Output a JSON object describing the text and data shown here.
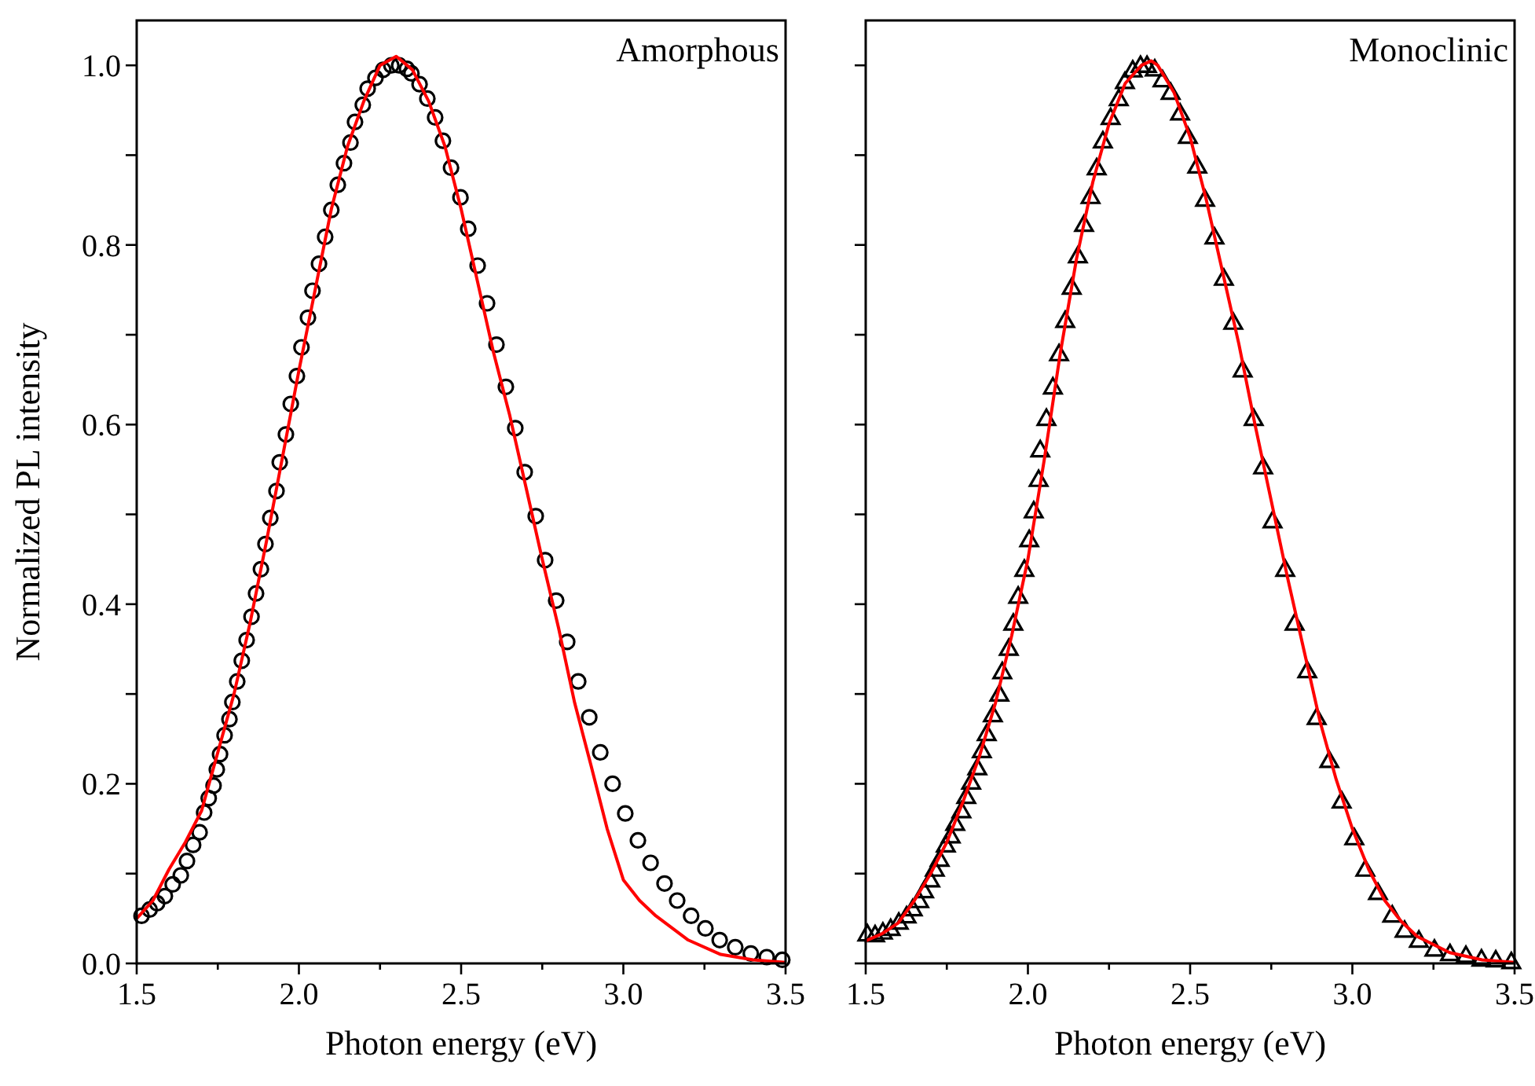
{
  "chart_data": [
    {
      "type": "scatter",
      "xlabel": "Photon energy (eV)",
      "ylabel": "Normalized PL intensity",
      "annotations": [
        "Amorphous"
      ],
      "xlim": [
        1.5,
        3.5
      ],
      "ylim": [
        0,
        1.05
      ],
      "xticks": [
        {
          "value": 1.5,
          "label": "1.5"
        },
        {
          "value": 1.75,
          "label": null
        },
        {
          "value": 2,
          "label": "2.0"
        },
        {
          "value": 2.25,
          "label": null
        },
        {
          "value": 2.5,
          "label": "2.5"
        },
        {
          "value": 2.75,
          "label": null
        },
        {
          "value": 3,
          "label": "3.0"
        },
        {
          "value": 3.25,
          "label": null
        },
        {
          "value": 3.5,
          "label": "3.5"
        }
      ],
      "yticks": [
        {
          "value": 0,
          "label": "0.0"
        },
        {
          "value": 0.1,
          "label": null
        },
        {
          "value": 0.2,
          "label": "0.2"
        },
        {
          "value": 0.3,
          "label": null
        },
        {
          "value": 0.4,
          "label": "0.4"
        },
        {
          "value": 0.5,
          "label": null
        },
        {
          "value": 0.6,
          "label": "0.6"
        },
        {
          "value": 0.7,
          "label": null
        },
        {
          "value": 0.8,
          "label": "0.8"
        },
        {
          "value": 0.9,
          "label": null
        },
        {
          "value": 1,
          "label": "1.0"
        }
      ],
      "grid": false,
      "series": [
        {
          "type": "scatter",
          "marker": "circle",
          "color": "#000000",
          "x": [
            1.515,
            1.54,
            1.563,
            1.587,
            1.611,
            1.636,
            1.655,
            1.674,
            1.694,
            1.708,
            1.722,
            1.737,
            1.747,
            1.757,
            1.771,
            1.786,
            1.795,
            1.81,
            1.824,
            1.839,
            1.854,
            1.868,
            1.883,
            1.897,
            1.912,
            1.931,
            1.941,
            1.96,
            1.975,
            1.994,
            2.008,
            2.028,
            2.042,
            2.062,
            2.081,
            2.1,
            2.12,
            2.139,
            2.159,
            2.173,
            2.197,
            2.212,
            2.236,
            2.26,
            2.285,
            2.309,
            2.333,
            2.347,
            2.372,
            2.396,
            2.42,
            2.444,
            2.469,
            2.498,
            2.522,
            2.551,
            2.58,
            2.609,
            2.638,
            2.667,
            2.696,
            2.73,
            2.759,
            2.793,
            2.827,
            2.861,
            2.895,
            2.929,
            2.967,
            3.006,
            3.045,
            3.084,
            3.127,
            3.166,
            3.209,
            3.253,
            3.297,
            3.345,
            3.393,
            3.442,
            3.49
          ],
          "values": [
            0.053,
            0.06,
            0.067,
            0.075,
            0.088,
            0.098,
            0.114,
            0.132,
            0.146,
            0.168,
            0.184,
            0.198,
            0.216,
            0.233,
            0.254,
            0.272,
            0.291,
            0.314,
            0.337,
            0.36,
            0.386,
            0.412,
            0.439,
            0.467,
            0.496,
            0.526,
            0.558,
            0.589,
            0.623,
            0.654,
            0.686,
            0.719,
            0.749,
            0.779,
            0.809,
            0.839,
            0.867,
            0.891,
            0.914,
            0.937,
            0.956,
            0.974,
            0.986,
            0.995,
            1.0,
            1.0,
            0.996,
            0.991,
            0.979,
            0.963,
            0.942,
            0.916,
            0.886,
            0.853,
            0.818,
            0.777,
            0.735,
            0.689,
            0.642,
            0.596,
            0.547,
            0.498,
            0.449,
            0.404,
            0.358,
            0.314,
            0.274,
            0.235,
            0.2,
            0.167,
            0.137,
            0.112,
            0.089,
            0.07,
            0.053,
            0.039,
            0.026,
            0.018,
            0.011,
            0.007,
            0.004
          ]
        },
        {
          "type": "line",
          "marker": "none",
          "line_style": "solid",
          "color": "#ff0000",
          "x": [
            1.5,
            1.55,
            1.6,
            1.65,
            1.7,
            1.75,
            1.8,
            1.85,
            1.9,
            1.95,
            2.0,
            2.05,
            2.1,
            2.15,
            2.2,
            2.25,
            2.3,
            2.35,
            2.4,
            2.45,
            2.5,
            2.55,
            2.6,
            2.65,
            2.7,
            2.75,
            2.8,
            2.85,
            2.9,
            2.95,
            3.0,
            3.05,
            3.1,
            3.2,
            3.3,
            3.4,
            3.5
          ],
          "values": [
            0.05,
            0.07,
            0.105,
            0.135,
            0.17,
            0.235,
            0.3,
            0.38,
            0.47,
            0.565,
            0.66,
            0.75,
            0.84,
            0.91,
            0.96,
            1.0,
            1.01,
            0.995,
            0.96,
            0.91,
            0.84,
            0.76,
            0.68,
            0.61,
            0.53,
            0.45,
            0.374,
            0.29,
            0.221,
            0.15,
            0.093,
            0.07,
            0.053,
            0.026,
            0.01,
            0.004,
            0.001
          ]
        }
      ]
    },
    {
      "type": "scatter",
      "xlabel": "Photon energy (eV)",
      "annotations": [
        "Monoclinic"
      ],
      "tick_labels": "x",
      "xlim": [
        1.5,
        3.5
      ],
      "ylim": [
        0,
        1.05
      ],
      "xticks": [
        {
          "value": 1.5,
          "label": "1.5"
        },
        {
          "value": 1.75,
          "label": null
        },
        {
          "value": 2,
          "label": "2.0"
        },
        {
          "value": 2.25,
          "label": null
        },
        {
          "value": 2.5,
          "label": "2.5"
        },
        {
          "value": 2.75,
          "label": null
        },
        {
          "value": 3,
          "label": "3.0"
        },
        {
          "value": 3.25,
          "label": null
        },
        {
          "value": 3.5,
          "label": "3.5"
        }
      ],
      "yticks": [
        {
          "value": 0,
          "label": null
        },
        {
          "value": 0.1,
          "label": null
        },
        {
          "value": 0.2,
          "label": null
        },
        {
          "value": 0.3,
          "label": null
        },
        {
          "value": 0.4,
          "label": null
        },
        {
          "value": 0.5,
          "label": null
        },
        {
          "value": 0.6,
          "label": null
        },
        {
          "value": 0.7,
          "label": null
        },
        {
          "value": 0.8,
          "label": null
        },
        {
          "value": 0.9,
          "label": null
        },
        {
          "value": 1,
          "label": null
        }
      ],
      "grid": false,
      "series": [
        {
          "type": "scatter",
          "marker": "triangle",
          "color": "#000000",
          "x": [
            1.505,
            1.529,
            1.553,
            1.577,
            1.602,
            1.626,
            1.645,
            1.665,
            1.68,
            1.699,
            1.713,
            1.728,
            1.747,
            1.762,
            1.776,
            1.795,
            1.81,
            1.825,
            1.844,
            1.858,
            1.873,
            1.892,
            1.912,
            1.921,
            1.941,
            1.955,
            1.97,
            1.989,
            2.004,
            2.018,
            2.033,
            2.038,
            2.057,
            2.077,
            2.096,
            2.115,
            2.135,
            2.154,
            2.173,
            2.193,
            2.212,
            2.231,
            2.255,
            2.28,
            2.299,
            2.323,
            2.347,
            2.367,
            2.391,
            2.415,
            2.44,
            2.469,
            2.493,
            2.522,
            2.546,
            2.575,
            2.604,
            2.633,
            2.662,
            2.696,
            2.725,
            2.754,
            2.793,
            2.822,
            2.861,
            2.89,
            2.929,
            2.967,
            3.006,
            3.04,
            3.079,
            3.123,
            3.161,
            3.205,
            3.253,
            3.301,
            3.35,
            3.398,
            3.442,
            3.49
          ],
          "values": [
            0.033,
            0.032,
            0.035,
            0.039,
            0.046,
            0.053,
            0.061,
            0.07,
            0.081,
            0.093,
            0.105,
            0.116,
            0.132,
            0.142,
            0.156,
            0.17,
            0.186,
            0.202,
            0.218,
            0.237,
            0.256,
            0.277,
            0.3,
            0.325,
            0.351,
            0.379,
            0.409,
            0.439,
            0.472,
            0.504,
            0.539,
            0.572,
            0.607,
            0.642,
            0.679,
            0.716,
            0.753,
            0.788,
            0.823,
            0.854,
            0.886,
            0.916,
            0.942,
            0.963,
            0.982,
            0.995,
            1.0,
            1.0,
            0.996,
            0.984,
            0.97,
            0.947,
            0.921,
            0.888,
            0.851,
            0.809,
            0.763,
            0.714,
            0.661,
            0.607,
            0.553,
            0.493,
            0.439,
            0.379,
            0.326,
            0.274,
            0.226,
            0.181,
            0.14,
            0.105,
            0.079,
            0.054,
            0.037,
            0.026,
            0.016,
            0.011,
            0.009,
            0.005,
            0.004,
            0.002
          ]
        },
        {
          "type": "line",
          "marker": "none",
          "line_style": "solid",
          "color": "#ff0000",
          "x": [
            1.5,
            1.55,
            1.6,
            1.65,
            1.7,
            1.75,
            1.8,
            1.85,
            1.9,
            1.95,
            2.0,
            2.05,
            2.1,
            2.15,
            2.2,
            2.25,
            2.3,
            2.35,
            2.38,
            2.4,
            2.45,
            2.5,
            2.55,
            2.6,
            2.65,
            2.7,
            2.75,
            2.8,
            2.85,
            2.9,
            2.95,
            3.0,
            3.05,
            3.1,
            3.15,
            3.2,
            3.3,
            3.4,
            3.5
          ],
          "values": [
            0.025,
            0.033,
            0.045,
            0.07,
            0.1,
            0.135,
            0.18,
            0.23,
            0.29,
            0.365,
            0.45,
            0.56,
            0.68,
            0.785,
            0.87,
            0.935,
            0.98,
            1.0,
            1.005,
            1.0,
            0.97,
            0.92,
            0.85,
            0.77,
            0.69,
            0.6,
            0.515,
            0.43,
            0.35,
            0.27,
            0.205,
            0.15,
            0.105,
            0.07,
            0.047,
            0.03,
            0.012,
            0.004,
            0.001
          ]
        }
      ]
    }
  ]
}
